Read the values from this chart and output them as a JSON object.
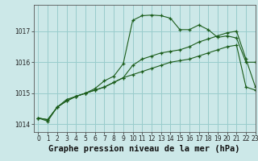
{
  "title": "Graphe pression niveau de la mer (hPa)",
  "bg_color": "#cce8e8",
  "grid_color": "#99cccc",
  "line_color": "#1a5c1a",
  "xlim": [
    -0.5,
    23
  ],
  "ylim": [
    1013.75,
    1017.85
  ],
  "yticks": [
    1014,
    1015,
    1016,
    1017
  ],
  "xticks": [
    0,
    1,
    2,
    3,
    4,
    5,
    6,
    7,
    8,
    9,
    10,
    11,
    12,
    13,
    14,
    15,
    16,
    17,
    18,
    19,
    20,
    21,
    22,
    23
  ],
  "line1_x": [
    0,
    1,
    2,
    3,
    4,
    5,
    6,
    7,
    8,
    9,
    10,
    11,
    12,
    13,
    14,
    15,
    16,
    17,
    18,
    19,
    20,
    21,
    22,
    23
  ],
  "line1_y": [
    1014.2,
    1014.15,
    1014.55,
    1014.75,
    1014.9,
    1015.0,
    1015.1,
    1015.2,
    1015.35,
    1015.5,
    1015.6,
    1015.7,
    1015.8,
    1015.9,
    1016.0,
    1016.05,
    1016.1,
    1016.2,
    1016.3,
    1016.4,
    1016.5,
    1016.55,
    1015.2,
    1015.1
  ],
  "line2_x": [
    0,
    1,
    2,
    3,
    4,
    5,
    6,
    7,
    8,
    9,
    10,
    11,
    12,
    13,
    14,
    15,
    16,
    17,
    18,
    19,
    20,
    21,
    22,
    23
  ],
  "line2_y": [
    1014.2,
    1014.15,
    1014.55,
    1014.75,
    1014.9,
    1015.0,
    1015.1,
    1015.2,
    1015.35,
    1015.5,
    1015.9,
    1016.1,
    1016.2,
    1016.3,
    1016.35,
    1016.4,
    1016.5,
    1016.65,
    1016.75,
    1016.85,
    1016.95,
    1017.0,
    1016.1,
    1015.2
  ],
  "line3_x": [
    0,
    1,
    2,
    3,
    4,
    5,
    6,
    7,
    8,
    9,
    10,
    11,
    12,
    13,
    14,
    15,
    16,
    17,
    18,
    19,
    20,
    21,
    22,
    23
  ],
  "line3_y": [
    1014.2,
    1014.1,
    1014.55,
    1014.8,
    1014.9,
    1015.0,
    1015.15,
    1015.4,
    1015.55,
    1015.95,
    1017.35,
    1017.5,
    1017.52,
    1017.5,
    1017.42,
    1017.05,
    1017.05,
    1017.2,
    1017.05,
    1016.8,
    1016.85,
    1016.78,
    1016.0,
    1016.0
  ],
  "title_fontsize": 7.5,
  "tick_fontsize": 5.5
}
